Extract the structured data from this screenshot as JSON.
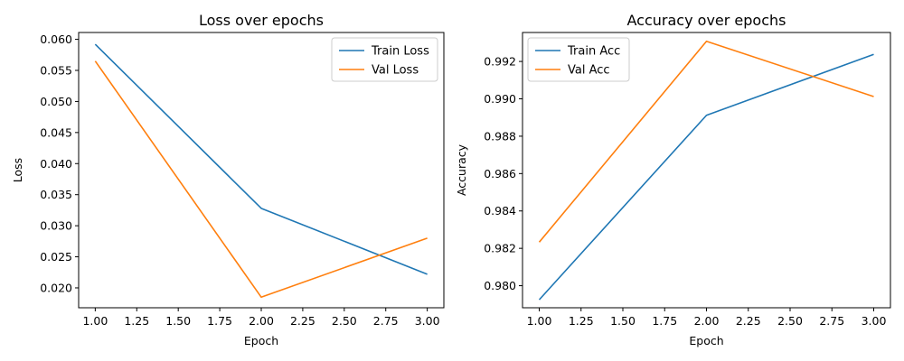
{
  "chart_data": [
    {
      "type": "line",
      "title": "Loss over epochs",
      "xlabel": "Epoch",
      "ylabel": "Loss",
      "x": [
        1.0,
        2.0,
        3.0
      ],
      "xlim": [
        0.9,
        3.1
      ],
      "ylim": [
        0.0168,
        0.0611
      ],
      "xticks": [
        1.0,
        1.25,
        1.5,
        1.75,
        2.0,
        2.25,
        2.5,
        2.75,
        3.0
      ],
      "xtick_labels": [
        "1.00",
        "1.25",
        "1.50",
        "1.75",
        "2.00",
        "2.25",
        "2.50",
        "2.75",
        "3.00"
      ],
      "yticks": [
        0.02,
        0.025,
        0.03,
        0.035,
        0.04,
        0.045,
        0.05,
        0.055,
        0.06
      ],
      "ytick_labels": [
        "0.020",
        "0.025",
        "0.030",
        "0.035",
        "0.040",
        "0.045",
        "0.050",
        "0.055",
        "0.060"
      ],
      "grid": false,
      "legend": "top-right",
      "series": [
        {
          "name": "Train Loss",
          "color": "#1f77b4",
          "values": [
            0.0592,
            0.0328,
            0.0222
          ]
        },
        {
          "name": "Val Loss",
          "color": "#ff7f0e",
          "values": [
            0.0565,
            0.0185,
            0.028
          ]
        }
      ]
    },
    {
      "type": "line",
      "title": "Accuracy over epochs",
      "xlabel": "Epoch",
      "ylabel": "Accuracy",
      "x": [
        1.0,
        2.0,
        3.0
      ],
      "xlim": [
        0.9,
        3.1
      ],
      "ylim": [
        0.97882,
        0.99355
      ],
      "xticks": [
        1.0,
        1.25,
        1.5,
        1.75,
        2.0,
        2.25,
        2.5,
        2.75,
        3.0
      ],
      "xtick_labels": [
        "1.00",
        "1.25",
        "1.50",
        "1.75",
        "2.00",
        "2.25",
        "2.50",
        "2.75",
        "3.00"
      ],
      "yticks": [
        0.98,
        0.982,
        0.984,
        0.986,
        0.988,
        0.99,
        0.992
      ],
      "ytick_labels": [
        "0.980",
        "0.982",
        "0.984",
        "0.986",
        "0.988",
        "0.990",
        "0.992"
      ],
      "grid": false,
      "legend": "top-left",
      "series": [
        {
          "name": "Train Acc",
          "color": "#1f77b4",
          "values": [
            0.97925,
            0.98912,
            0.99238
          ]
        },
        {
          "name": "Val Acc",
          "color": "#ff7f0e",
          "values": [
            0.98233,
            0.99308,
            0.99012
          ]
        }
      ]
    }
  ]
}
